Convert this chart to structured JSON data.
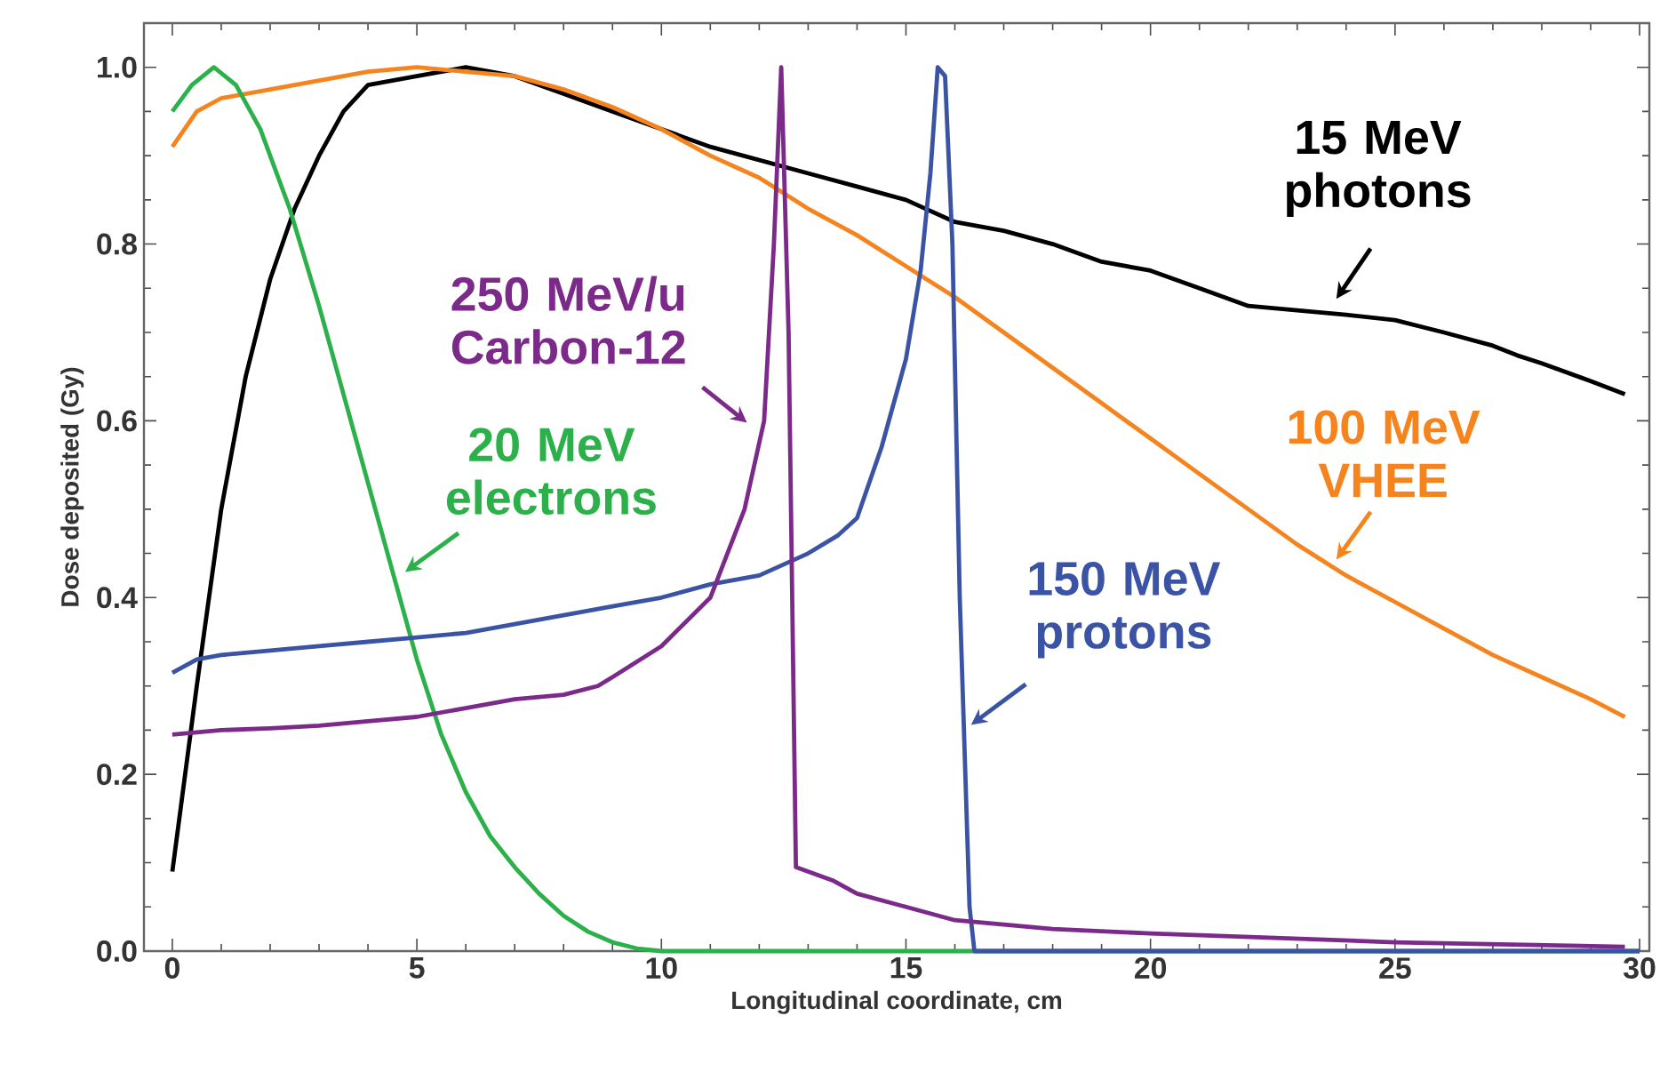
{
  "chart_data": {
    "type": "line",
    "xlabel": "Longitudinal coordinate, cm",
    "ylabel": "Dose deposited (Gy)",
    "xlim": [
      -0.58,
      30.2
    ],
    "ylim": [
      0,
      1.05
    ],
    "xticks": [
      0,
      5,
      10,
      15,
      20,
      25,
      30
    ],
    "yticks": [
      {
        "value": 0,
        "label": "0.0"
      },
      {
        "value": 0.2,
        "label": "0.2"
      },
      {
        "value": 0.4,
        "label": "0.4"
      },
      {
        "value": 0.6,
        "label": "0.6"
      },
      {
        "value": 0.8,
        "label": "0.8"
      },
      {
        "value": 1.0,
        "label": "1.0"
      }
    ],
    "series": [
      {
        "name": "15 MeV photons",
        "color": "#000000",
        "x": [
          0,
          0.5,
          1,
          1.5,
          2,
          2.5,
          3,
          3.5,
          4,
          5,
          6,
          7,
          8,
          9,
          10,
          11,
          12,
          13,
          14,
          15,
          16,
          17,
          18,
          19,
          20,
          21,
          22,
          23,
          24,
          25,
          26,
          27,
          27.5,
          28,
          29,
          29.7
        ],
        "values": [
          0.09,
          0.3,
          0.5,
          0.65,
          0.76,
          0.84,
          0.9,
          0.95,
          0.98,
          0.99,
          1.0,
          0.99,
          0.97,
          0.95,
          0.93,
          0.91,
          0.895,
          0.88,
          0.865,
          0.85,
          0.825,
          0.815,
          0.8,
          0.78,
          0.77,
          0.75,
          0.73,
          0.725,
          0.72,
          0.714,
          0.7,
          0.685,
          0.674,
          0.665,
          0.645,
          0.63
        ]
      },
      {
        "name": "100 MeV VHEE",
        "color": "#f5841f",
        "x": [
          0,
          0.5,
          1,
          2,
          3,
          4,
          5,
          6,
          7,
          8,
          9,
          10,
          11,
          12,
          13,
          14,
          15,
          16,
          17,
          18,
          19,
          20,
          21,
          22,
          23,
          24,
          25,
          26,
          27,
          28,
          29,
          29.7
        ],
        "values": [
          0.91,
          0.95,
          0.965,
          0.975,
          0.985,
          0.995,
          1.0,
          0.995,
          0.99,
          0.975,
          0.955,
          0.93,
          0.9,
          0.875,
          0.84,
          0.81,
          0.775,
          0.74,
          0.7,
          0.66,
          0.62,
          0.58,
          0.54,
          0.5,
          0.46,
          0.425,
          0.395,
          0.365,
          0.335,
          0.31,
          0.285,
          0.265
        ]
      },
      {
        "name": "20 MeV electrons",
        "color": "#2bb04a",
        "x": [
          0,
          0.4,
          0.85,
          1.3,
          1.8,
          2.4,
          3,
          3.5,
          4,
          4.5,
          5,
          5.5,
          6,
          6.5,
          7,
          7.5,
          8,
          8.5,
          9,
          9.5,
          10,
          30
        ],
        "values": [
          0.95,
          0.98,
          1.0,
          0.98,
          0.93,
          0.84,
          0.73,
          0.63,
          0.53,
          0.43,
          0.33,
          0.245,
          0.18,
          0.13,
          0.095,
          0.065,
          0.04,
          0.022,
          0.01,
          0.003,
          0,
          0
        ]
      },
      {
        "name": "150 MeV protons",
        "color": "#3a53a4",
        "x": [
          0,
          0.5,
          1,
          2,
          3,
          4,
          5,
          6,
          7,
          8,
          9,
          10,
          11,
          12,
          13,
          13.6,
          14,
          14.5,
          15,
          15.3,
          15.5,
          15.65,
          15.8,
          15.95,
          16.1,
          16.3,
          16.4,
          30
        ],
        "values": [
          0.315,
          0.33,
          0.335,
          0.34,
          0.345,
          0.35,
          0.355,
          0.36,
          0.37,
          0.38,
          0.39,
          0.4,
          0.415,
          0.425,
          0.45,
          0.47,
          0.49,
          0.57,
          0.67,
          0.77,
          0.88,
          1.0,
          0.99,
          0.8,
          0.4,
          0.05,
          0,
          0
        ]
      },
      {
        "name": "250 MeV/u Carbon-12",
        "color": "#7b2a8a",
        "x": [
          0,
          1,
          2,
          3,
          4,
          5,
          6,
          7,
          8,
          8.7,
          9,
          10,
          11,
          11.7,
          12.1,
          12.3,
          12.45,
          12.6,
          12.75,
          13,
          13.5,
          14,
          15,
          16,
          18,
          20,
          25,
          29.7
        ],
        "values": [
          0.245,
          0.25,
          0.252,
          0.255,
          0.26,
          0.265,
          0.275,
          0.285,
          0.29,
          0.3,
          0.31,
          0.345,
          0.4,
          0.5,
          0.6,
          0.8,
          1.0,
          0.7,
          0.095,
          0.09,
          0.08,
          0.065,
          0.05,
          0.035,
          0.025,
          0.02,
          0.01,
          0.005
        ]
      }
    ]
  }
}
